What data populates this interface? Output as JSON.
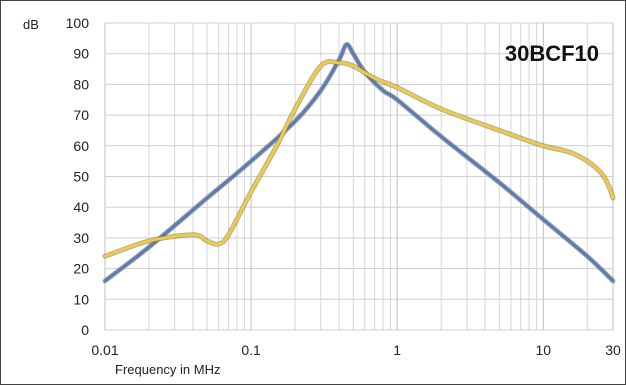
{
  "chart_data": {
    "type": "line",
    "title": "30BCF10",
    "xlabel": "Frequency in MHz",
    "ylabel": "dB",
    "xscale": "log",
    "xlim": [
      0.01,
      30
    ],
    "ylim": [
      0,
      100
    ],
    "grid": true,
    "x_ticks": [
      "0.01",
      "0.1",
      "1",
      "10",
      "30"
    ],
    "y_ticks": [
      "0",
      "10",
      "20",
      "30",
      "40",
      "50",
      "60",
      "70",
      "80",
      "90",
      "100"
    ],
    "series": [
      {
        "color": "#5b7bb4",
        "x": [
          0.01,
          0.02,
          0.05,
          0.1,
          0.2,
          0.3,
          0.4,
          0.45,
          0.5,
          0.6,
          0.8,
          1,
          2,
          5,
          10,
          20,
          30
        ],
        "y": [
          16,
          27,
          43,
          55,
          68,
          78,
          88,
          93,
          90,
          84,
          78,
          75,
          63,
          48,
          36,
          24,
          16
        ]
      },
      {
        "color": "#f0cb3c",
        "x": [
          0.01,
          0.02,
          0.04,
          0.05,
          0.06,
          0.07,
          0.1,
          0.15,
          0.2,
          0.3,
          0.4,
          0.5,
          0.7,
          1,
          2,
          5,
          10,
          15,
          20,
          25,
          28,
          30
        ],
        "y": [
          24,
          29,
          31,
          29,
          28,
          31,
          45,
          60,
          72,
          86,
          87,
          86,
          82,
          79,
          72,
          65,
          60,
          58,
          55,
          51,
          47,
          43
        ]
      }
    ]
  }
}
